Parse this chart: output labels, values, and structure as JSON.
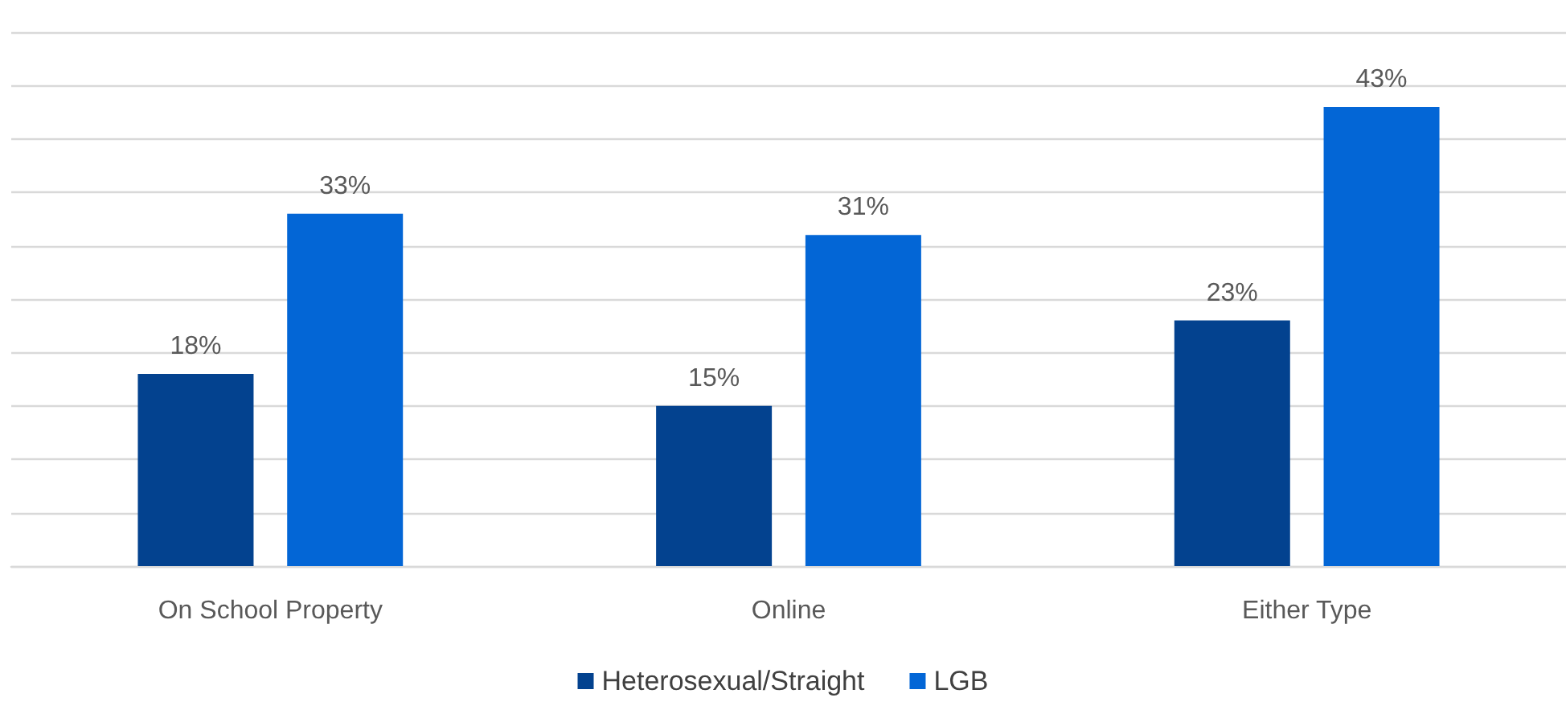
{
  "chart_data": {
    "type": "bar",
    "categories": [
      "On School Property",
      "Online",
      "Either Type"
    ],
    "series": [
      {
        "name": "Heterosexual/Straight",
        "color": "#03428f",
        "values": [
          18,
          15,
          23
        ],
        "value_labels": [
          "18%",
          "15%",
          "23%"
        ]
      },
      {
        "name": "LGB",
        "color": "#0366d6",
        "values": [
          33,
          31,
          43
        ],
        "value_labels": [
          "33%",
          "31%",
          "43%"
        ]
      }
    ],
    "ylim": [
      0,
      50
    ],
    "yticks": [
      {
        "value": 0,
        "label": null
      },
      {
        "value": 5,
        "label": null
      },
      {
        "value": 10,
        "label": null
      },
      {
        "value": 15,
        "label": null
      },
      {
        "value": 20,
        "label": null
      },
      {
        "value": 25,
        "label": null
      },
      {
        "value": 30,
        "label": null
      },
      {
        "value": 35,
        "label": null
      },
      {
        "value": 40,
        "label": null
      },
      {
        "value": 45,
        "label": null
      },
      {
        "value": 50,
        "label": null
      }
    ],
    "tick_labels": "x",
    "grid": "y",
    "legend": "bottom"
  }
}
